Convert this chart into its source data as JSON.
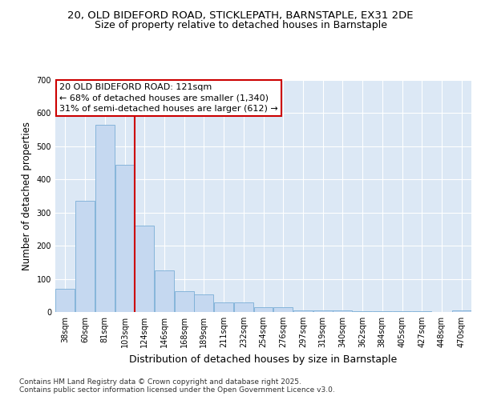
{
  "title_line1": "20, OLD BIDEFORD ROAD, STICKLEPATH, BARNSTAPLE, EX31 2DE",
  "title_line2": "Size of property relative to detached houses in Barnstaple",
  "xlabel": "Distribution of detached houses by size in Barnstaple",
  "ylabel": "Number of detached properties",
  "categories": [
    "38sqm",
    "60sqm",
    "81sqm",
    "103sqm",
    "124sqm",
    "146sqm",
    "168sqm",
    "189sqm",
    "211sqm",
    "232sqm",
    "254sqm",
    "276sqm",
    "297sqm",
    "319sqm",
    "340sqm",
    "362sqm",
    "384sqm",
    "405sqm",
    "427sqm",
    "448sqm",
    "470sqm"
  ],
  "values": [
    70,
    335,
    565,
    445,
    260,
    125,
    63,
    52,
    30,
    28,
    15,
    15,
    5,
    5,
    4,
    3,
    2,
    2,
    2,
    1,
    4
  ],
  "bar_color": "#c5d8f0",
  "bar_edge_color": "#7aaed6",
  "vline_color": "#cc0000",
  "vline_pos": 3.5,
  "annotation_text": "20 OLD BIDEFORD ROAD: 121sqm\n← 68% of detached houses are smaller (1,340)\n31% of semi-detached houses are larger (612) →",
  "annotation_box_facecolor": "#ffffff",
  "annotation_box_edgecolor": "#cc0000",
  "ylim": [
    0,
    700
  ],
  "yticks": [
    0,
    100,
    200,
    300,
    400,
    500,
    600,
    700
  ],
  "background_color": "#dce8f5",
  "grid_color": "#ffffff",
  "footer_line1": "Contains HM Land Registry data © Crown copyright and database right 2025.",
  "footer_line2": "Contains public sector information licensed under the Open Government Licence v3.0.",
  "title_fontsize": 9.5,
  "subtitle_fontsize": 9,
  "ylabel_fontsize": 8.5,
  "xlabel_fontsize": 9,
  "tick_fontsize": 7,
  "annot_fontsize": 8,
  "footer_fontsize": 6.5
}
